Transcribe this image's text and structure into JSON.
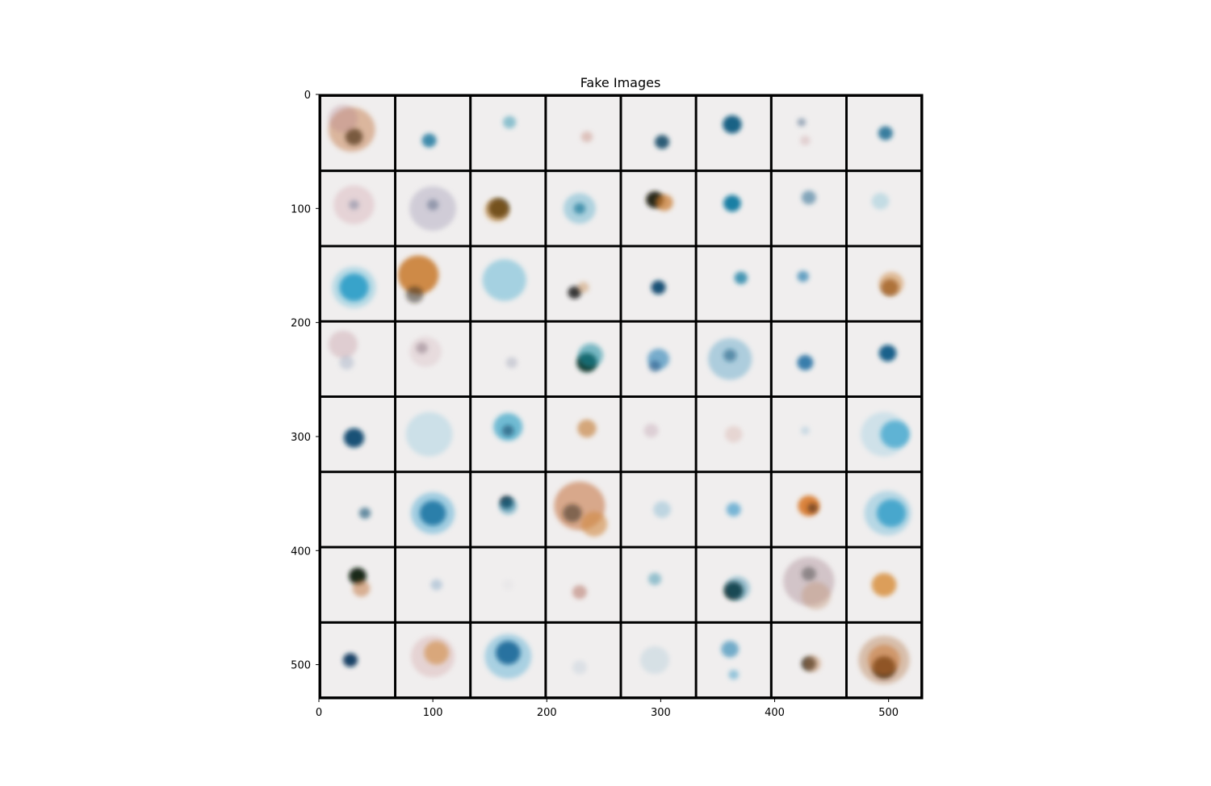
{
  "chart_data": {
    "type": "heatmap",
    "title": "Fake Images",
    "xlabel": "",
    "ylabel": "",
    "xlim": [
      0,
      530
    ],
    "ylim": [
      530,
      0
    ],
    "x_ticks": [
      0,
      100,
      200,
      300,
      400,
      500
    ],
    "y_ticks": [
      0,
      100,
      200,
      300,
      400,
      500
    ],
    "grid_rows": 8,
    "grid_cols": 8,
    "cell_size": 66,
    "background_color": "#f0eeee",
    "border_color": "#000000",
    "tiles": [
      [
        {
          "blobs": [
            {
              "dx": 0.45,
              "dy": 0.55,
              "r": 0.12,
              "c": "#1f2a25",
              "o": 0.85
            },
            {
              "dx": 0.42,
              "dy": 0.45,
              "r": 0.32,
              "c": "#c0703a",
              "o": 0.45
            },
            {
              "dx": 0.3,
              "dy": 0.3,
              "r": 0.2,
              "c": "#b07a88",
              "o": 0.3
            }
          ]
        },
        {
          "blobs": [
            {
              "dx": 0.45,
              "dy": 0.6,
              "r": 0.1,
              "c": "#1c7aa0",
              "o": 0.85
            }
          ]
        },
        {
          "blobs": [
            {
              "dx": 0.52,
              "dy": 0.35,
              "r": 0.09,
              "c": "#3a9ab5",
              "o": 0.55
            }
          ]
        },
        {
          "blobs": [
            {
              "dx": 0.55,
              "dy": 0.55,
              "r": 0.08,
              "c": "#c08070",
              "o": 0.4
            }
          ]
        },
        {
          "blobs": [
            {
              "dx": 0.55,
              "dy": 0.62,
              "r": 0.1,
              "c": "#164e6a",
              "o": 0.9
            }
          ]
        },
        {
          "blobs": [
            {
              "dx": 0.48,
              "dy": 0.38,
              "r": 0.13,
              "c": "#0e5b80",
              "o": 0.95
            }
          ]
        },
        {
          "blobs": [
            {
              "dx": 0.4,
              "dy": 0.35,
              "r": 0.06,
              "c": "#4a6a8a",
              "o": 0.5
            },
            {
              "dx": 0.45,
              "dy": 0.6,
              "r": 0.07,
              "c": "#c08a90",
              "o": 0.3
            }
          ]
        },
        {
          "blobs": [
            {
              "dx": 0.52,
              "dy": 0.5,
              "r": 0.1,
              "c": "#1a6a90",
              "o": 0.85
            }
          ]
        }
      ],
      [
        {
          "blobs": [
            {
              "dx": 0.45,
              "dy": 0.45,
              "r": 0.28,
              "c": "#d0a0a8",
              "o": 0.35
            },
            {
              "dx": 0.45,
              "dy": 0.45,
              "r": 0.07,
              "c": "#5a6a8a",
              "o": 0.4
            }
          ]
        },
        {
          "blobs": [
            {
              "dx": 0.5,
              "dy": 0.5,
              "r": 0.32,
              "c": "#a09ab5",
              "o": 0.4
            },
            {
              "dx": 0.5,
              "dy": 0.45,
              "r": 0.08,
              "c": "#4a5a7a",
              "o": 0.45
            }
          ]
        },
        {
          "blobs": [
            {
              "dx": 0.37,
              "dy": 0.5,
              "r": 0.14,
              "c": "#1a1a10",
              "o": 0.95
            },
            {
              "dx": 0.35,
              "dy": 0.52,
              "r": 0.17,
              "c": "#c07a20",
              "o": 0.5
            }
          ]
        },
        {
          "blobs": [
            {
              "dx": 0.45,
              "dy": 0.5,
              "r": 0.22,
              "c": "#5ab0cc",
              "o": 0.45
            },
            {
              "dx": 0.45,
              "dy": 0.5,
              "r": 0.08,
              "c": "#1a7a9a",
              "o": 0.7
            }
          ]
        },
        {
          "blobs": [
            {
              "dx": 0.45,
              "dy": 0.38,
              "r": 0.12,
              "c": "#1e1a12",
              "o": 0.95
            },
            {
              "dx": 0.58,
              "dy": 0.42,
              "r": 0.12,
              "c": "#c8782a",
              "o": 0.7
            }
          ]
        },
        {
          "blobs": [
            {
              "dx": 0.48,
              "dy": 0.43,
              "r": 0.12,
              "c": "#1078a0",
              "o": 0.95
            }
          ]
        },
        {
          "blobs": [
            {
              "dx": 0.5,
              "dy": 0.35,
              "r": 0.1,
              "c": "#2a6a90",
              "o": 0.55
            }
          ]
        },
        {
          "blobs": [
            {
              "dx": 0.45,
              "dy": 0.4,
              "r": 0.12,
              "c": "#80c0d5",
              "o": 0.4
            }
          ]
        }
      ],
      [
        {
          "blobs": [
            {
              "dx": 0.45,
              "dy": 0.55,
              "r": 0.2,
              "c": "#1a90c0",
              "o": 0.9
            },
            {
              "dx": 0.45,
              "dy": 0.55,
              "r": 0.3,
              "c": "#50b5d5",
              "o": 0.35
            }
          ]
        },
        {
          "blobs": [
            {
              "dx": 0.3,
              "dy": 0.38,
              "r": 0.28,
              "c": "#c8782a",
              "o": 0.85
            },
            {
              "dx": 0.25,
              "dy": 0.65,
              "r": 0.12,
              "c": "#2a2010",
              "o": 0.5
            }
          ]
        },
        {
          "blobs": [
            {
              "dx": 0.45,
              "dy": 0.45,
              "r": 0.3,
              "c": "#4ab0d0",
              "o": 0.45
            }
          ]
        },
        {
          "blobs": [
            {
              "dx": 0.38,
              "dy": 0.62,
              "r": 0.09,
              "c": "#1a1a1a",
              "o": 0.85
            },
            {
              "dx": 0.5,
              "dy": 0.55,
              "r": 0.08,
              "c": "#c08040",
              "o": 0.4
            }
          ]
        },
        {
          "blobs": [
            {
              "dx": 0.5,
              "dy": 0.55,
              "r": 0.1,
              "c": "#0e4a70",
              "o": 0.95
            }
          ]
        },
        {
          "blobs": [
            {
              "dx": 0.6,
              "dy": 0.42,
              "r": 0.09,
              "c": "#1a80a5",
              "o": 0.8
            }
          ]
        },
        {
          "blobs": [
            {
              "dx": 0.42,
              "dy": 0.4,
              "r": 0.08,
              "c": "#2a80b0",
              "o": 0.7
            }
          ]
        },
        {
          "blobs": [
            {
              "dx": 0.58,
              "dy": 0.55,
              "r": 0.12,
              "c": "#7a4010",
              "o": 0.85
            },
            {
              "dx": 0.6,
              "dy": 0.5,
              "r": 0.17,
              "c": "#d08a40",
              "o": 0.5
            }
          ]
        }
      ],
      [
        {
          "blobs": [
            {
              "dx": 0.3,
              "dy": 0.3,
              "r": 0.2,
              "c": "#c0909a",
              "o": 0.35
            },
            {
              "dx": 0.35,
              "dy": 0.55,
              "r": 0.1,
              "c": "#7a90b0",
              "o": 0.3
            }
          ]
        },
        {
          "blobs": [
            {
              "dx": 0.35,
              "dy": 0.35,
              "r": 0.08,
              "c": "#5a4a5a",
              "o": 0.45
            },
            {
              "dx": 0.4,
              "dy": 0.4,
              "r": 0.22,
              "c": "#d0b0b5",
              "o": 0.3
            }
          ]
        },
        {
          "blobs": [
            {
              "dx": 0.55,
              "dy": 0.55,
              "r": 0.08,
              "c": "#9aa0b5",
              "o": 0.4
            }
          ]
        },
        {
          "blobs": [
            {
              "dx": 0.55,
              "dy": 0.55,
              "r": 0.14,
              "c": "#123a30",
              "o": 0.95
            },
            {
              "dx": 0.6,
              "dy": 0.45,
              "r": 0.17,
              "c": "#1a8aa0",
              "o": 0.55
            }
          ]
        },
        {
          "blobs": [
            {
              "dx": 0.5,
              "dy": 0.5,
              "r": 0.15,
              "c": "#2a80b5",
              "o": 0.6
            },
            {
              "dx": 0.45,
              "dy": 0.6,
              "r": 0.08,
              "c": "#2a5a8a",
              "o": 0.6
            }
          ]
        },
        {
          "blobs": [
            {
              "dx": 0.45,
              "dy": 0.5,
              "r": 0.3,
              "c": "#5aa5c8",
              "o": 0.45
            },
            {
              "dx": 0.45,
              "dy": 0.45,
              "r": 0.09,
              "c": "#1a5a80",
              "o": 0.55
            }
          ]
        },
        {
          "blobs": [
            {
              "dx": 0.45,
              "dy": 0.55,
              "r": 0.11,
              "c": "#1a6aa0",
              "o": 0.85
            }
          ]
        },
        {
          "blobs": [
            {
              "dx": 0.55,
              "dy": 0.42,
              "r": 0.12,
              "c": "#0e5a85",
              "o": 0.95
            }
          ]
        }
      ],
      [
        {
          "blobs": [
            {
              "dx": 0.45,
              "dy": 0.55,
              "r": 0.14,
              "c": "#0e4a70",
              "o": 0.95
            }
          ]
        },
        {
          "blobs": [
            {
              "dx": 0.45,
              "dy": 0.5,
              "r": 0.32,
              "c": "#8ac5dd",
              "o": 0.35
            }
          ]
        },
        {
          "blobs": [
            {
              "dx": 0.5,
              "dy": 0.4,
              "r": 0.2,
              "c": "#2aa0c5",
              "o": 0.65
            },
            {
              "dx": 0.5,
              "dy": 0.45,
              "r": 0.08,
              "c": "#104a6a",
              "o": 0.6
            }
          ]
        },
        {
          "blobs": [
            {
              "dx": 0.55,
              "dy": 0.42,
              "r": 0.13,
              "c": "#c8884a",
              "o": 0.7
            }
          ]
        },
        {
          "blobs": [
            {
              "dx": 0.4,
              "dy": 0.45,
              "r": 0.1,
              "c": "#c0a0b0",
              "o": 0.4
            }
          ]
        },
        {
          "blobs": [
            {
              "dx": 0.5,
              "dy": 0.5,
              "r": 0.12,
              "c": "#d8b0a8",
              "o": 0.4
            }
          ]
        },
        {
          "blobs": [
            {
              "dx": 0.45,
              "dy": 0.45,
              "r": 0.06,
              "c": "#80b5d0",
              "o": 0.35
            }
          ]
        },
        {
          "blobs": [
            {
              "dx": 0.65,
              "dy": 0.5,
              "r": 0.2,
              "c": "#1a95c5",
              "o": 0.75
            },
            {
              "dx": 0.5,
              "dy": 0.5,
              "r": 0.32,
              "c": "#80c5dd",
              "o": 0.3
            }
          ]
        }
      ],
      [
        {
          "blobs": [
            {
              "dx": 0.6,
              "dy": 0.55,
              "r": 0.08,
              "c": "#1a5a7a",
              "o": 0.65
            }
          ]
        },
        {
          "blobs": [
            {
              "dx": 0.5,
              "dy": 0.55,
              "r": 0.18,
              "c": "#0e5a85",
              "o": 0.95
            },
            {
              "dx": 0.5,
              "dy": 0.55,
              "r": 0.3,
              "c": "#40a5d0",
              "o": 0.45
            }
          ]
        },
        {
          "blobs": [
            {
              "dx": 0.48,
              "dy": 0.4,
              "r": 0.09,
              "c": "#1a2a3a",
              "o": 0.95
            },
            {
              "dx": 0.5,
              "dy": 0.45,
              "r": 0.12,
              "c": "#1a80a5",
              "o": 0.5
            }
          ]
        },
        {
          "blobs": [
            {
              "dx": 0.45,
              "dy": 0.45,
              "r": 0.35,
              "c": "#c8784a",
              "o": 0.6
            },
            {
              "dx": 0.35,
              "dy": 0.55,
              "r": 0.13,
              "c": "#2a2010",
              "o": 0.5
            },
            {
              "dx": 0.65,
              "dy": 0.7,
              "r": 0.18,
              "c": "#d08840",
              "o": 0.6
            }
          ]
        },
        {
          "blobs": [
            {
              "dx": 0.55,
              "dy": 0.5,
              "r": 0.12,
              "c": "#80b5d0",
              "o": 0.45
            }
          ]
        },
        {
          "blobs": [
            {
              "dx": 0.5,
              "dy": 0.5,
              "r": 0.1,
              "c": "#2a90c5",
              "o": 0.6
            }
          ]
        },
        {
          "blobs": [
            {
              "dx": 0.5,
              "dy": 0.45,
              "r": 0.15,
              "c": "#d8782a",
              "o": 0.9
            },
            {
              "dx": 0.55,
              "dy": 0.48,
              "r": 0.07,
              "c": "#3a2010",
              "o": 0.55
            }
          ]
        },
        {
          "blobs": [
            {
              "dx": 0.6,
              "dy": 0.55,
              "r": 0.2,
              "c": "#1a90c0",
              "o": 0.85
            },
            {
              "dx": 0.55,
              "dy": 0.55,
              "r": 0.32,
              "c": "#60b5d8",
              "o": 0.4
            }
          ]
        }
      ],
      [
        {
          "blobs": [
            {
              "dx": 0.5,
              "dy": 0.38,
              "r": 0.12,
              "c": "#0e1a10",
              "o": 0.95
            },
            {
              "dx": 0.55,
              "dy": 0.55,
              "r": 0.12,
              "c": "#c0703a",
              "o": 0.5
            }
          ]
        },
        {
          "blobs": [
            {
              "dx": 0.55,
              "dy": 0.5,
              "r": 0.08,
              "c": "#80a5c5",
              "o": 0.45
            }
          ]
        },
        {
          "blobs": [
            {
              "dx": 0.5,
              "dy": 0.5,
              "r": 0.08,
              "c": "#d0d0d5",
              "o": 0.2
            }
          ]
        },
        {
          "blobs": [
            {
              "dx": 0.45,
              "dy": 0.6,
              "r": 0.1,
              "c": "#b06a5a",
              "o": 0.5
            }
          ]
        },
        {
          "blobs": [
            {
              "dx": 0.45,
              "dy": 0.42,
              "r": 0.09,
              "c": "#4a9ab5",
              "o": 0.55
            }
          ]
        },
        {
          "blobs": [
            {
              "dx": 0.5,
              "dy": 0.58,
              "r": 0.13,
              "c": "#0e1e14",
              "o": 0.95
            },
            {
              "dx": 0.55,
              "dy": 0.55,
              "r": 0.17,
              "c": "#1a7aa0",
              "o": 0.4
            }
          ]
        },
        {
          "blobs": [
            {
              "dx": 0.5,
              "dy": 0.45,
              "r": 0.35,
              "c": "#b0909a",
              "o": 0.45
            },
            {
              "dx": 0.5,
              "dy": 0.35,
              "r": 0.1,
              "c": "#3a3a3a",
              "o": 0.45
            },
            {
              "dx": 0.6,
              "dy": 0.65,
              "r": 0.2,
              "c": "#c09070",
              "o": 0.4
            }
          ]
        },
        {
          "blobs": [
            {
              "dx": 0.5,
              "dy": 0.5,
              "r": 0.17,
              "c": "#d89040",
              "o": 0.85
            }
          ]
        }
      ],
      [
        {
          "blobs": [
            {
              "dx": 0.4,
              "dy": 0.5,
              "r": 0.1,
              "c": "#0e3a60",
              "o": 0.95
            }
          ]
        },
        {
          "blobs": [
            {
              "dx": 0.5,
              "dy": 0.45,
              "r": 0.3,
              "c": "#d0a0a0",
              "o": 0.35
            },
            {
              "dx": 0.55,
              "dy": 0.4,
              "r": 0.17,
              "c": "#d08a40",
              "o": 0.6
            }
          ]
        },
        {
          "blobs": [
            {
              "dx": 0.5,
              "dy": 0.4,
              "r": 0.17,
              "c": "#0e4a7a",
              "o": 0.95
            },
            {
              "dx": 0.5,
              "dy": 0.45,
              "r": 0.32,
              "c": "#40a5d0",
              "o": 0.4
            }
          ]
        },
        {
          "blobs": [
            {
              "dx": 0.45,
              "dy": 0.6,
              "r": 0.1,
              "c": "#b5c5d5",
              "o": 0.35
            }
          ]
        },
        {
          "blobs": [
            {
              "dx": 0.45,
              "dy": 0.5,
              "r": 0.2,
              "c": "#a5c5d5",
              "o": 0.35
            }
          ]
        },
        {
          "blobs": [
            {
              "dx": 0.45,
              "dy": 0.35,
              "r": 0.12,
              "c": "#1a80b0",
              "o": 0.6
            },
            {
              "dx": 0.5,
              "dy": 0.7,
              "r": 0.07,
              "c": "#3a9ac5",
              "o": 0.5
            }
          ]
        },
        {
          "blobs": [
            {
              "dx": 0.5,
              "dy": 0.55,
              "r": 0.1,
              "c": "#2a2418",
              "o": 0.85
            },
            {
              "dx": 0.55,
              "dy": 0.55,
              "r": 0.12,
              "c": "#c08050",
              "o": 0.4
            }
          ]
        },
        {
          "blobs": [
            {
              "dx": 0.5,
              "dy": 0.5,
              "r": 0.35,
              "c": "#c0906a",
              "o": 0.5
            },
            {
              "dx": 0.5,
              "dy": 0.6,
              "r": 0.16,
              "c": "#3a1a08",
              "o": 0.8
            },
            {
              "dx": 0.5,
              "dy": 0.5,
              "r": 0.22,
              "c": "#c8702a",
              "o": 0.5
            }
          ]
        }
      ]
    ]
  }
}
